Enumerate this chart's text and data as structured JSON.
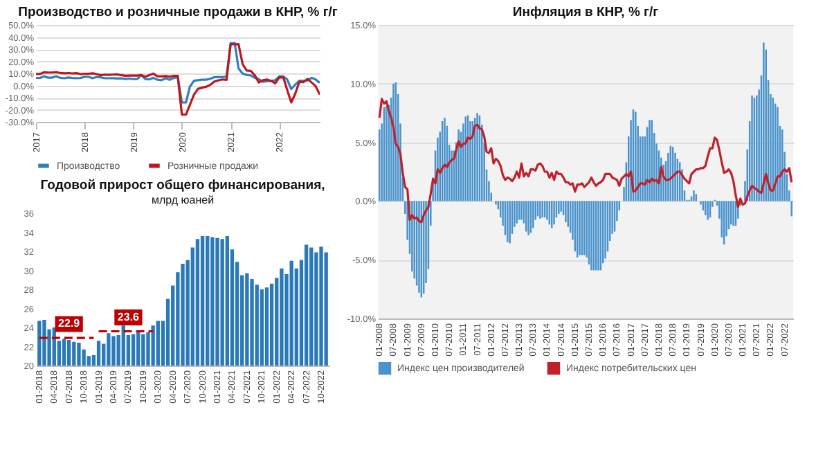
{
  "chart_data": [
    {
      "type": "line",
      "title": "Производство и розничные продажи в КНР, % г/г",
      "legend": "bottom",
      "grid": "y",
      "x": [
        "2017-01",
        "2017-02",
        "2017-03",
        "2017-04",
        "2017-05",
        "2017-06",
        "2017-07",
        "2017-08",
        "2017-09",
        "2017-10",
        "2017-11",
        "2017-12",
        "2018-01",
        "2018-02",
        "2018-03",
        "2018-04",
        "2018-05",
        "2018-06",
        "2018-07",
        "2018-08",
        "2018-09",
        "2018-10",
        "2018-11",
        "2018-12",
        "2019-01",
        "2019-02",
        "2019-03",
        "2019-04",
        "2019-05",
        "2019-06",
        "2019-07",
        "2019-08",
        "2019-09",
        "2019-10",
        "2019-11",
        "2019-12",
        "2020-01",
        "2020-02",
        "2020-03",
        "2020-04",
        "2020-05",
        "2020-06",
        "2020-07",
        "2020-08",
        "2020-09",
        "2020-10",
        "2020-11",
        "2020-12",
        "2021-01",
        "2021-02",
        "2021-03",
        "2021-04",
        "2021-05",
        "2021-06",
        "2021-07",
        "2021-08",
        "2021-09",
        "2021-10",
        "2021-11",
        "2021-12",
        "2022-01",
        "2022-02",
        "2022-03",
        "2022-04",
        "2022-05",
        "2022-06",
        "2022-07",
        "2022-08",
        "2022-09",
        "2022-10",
        "2022-11"
      ],
      "xlim": [
        "2017-01",
        "2022-11"
      ],
      "xticks": [
        "2017",
        "2018",
        "2019",
        "2020",
        "2021",
        "2022"
      ],
      "ylim": [
        -30,
        50
      ],
      "yticks": [
        {
          "value": -30,
          "label": "-30.0%"
        },
        {
          "value": -20,
          "label": "-20.0%"
        },
        {
          "value": -10,
          "label": "-10.0%"
        },
        {
          "value": 0,
          "label": "0.0%"
        },
        {
          "value": 10,
          "label": "10.0%"
        },
        {
          "value": 20,
          "label": "20.0%"
        },
        {
          "value": 30,
          "label": "30.0%"
        },
        {
          "value": 40,
          "label": "40.0%"
        },
        {
          "value": 50,
          "label": "50.0%"
        }
      ],
      "series": [
        {
          "name": "Производство",
          "color": "#2e7fc0",
          "values": [
            6.3,
            6.3,
            7.6,
            6.5,
            6.5,
            7.6,
            6.4,
            6.0,
            6.6,
            6.2,
            6.1,
            6.2,
            7.2,
            7.2,
            6.0,
            7.0,
            6.8,
            6.0,
            6.0,
            6.1,
            5.8,
            5.9,
            5.4,
            5.7,
            5.3,
            5.3,
            8.5,
            5.4,
            5.0,
            6.3,
            4.8,
            4.4,
            5.8,
            4.7,
            6.2,
            6.9,
            -14,
            -14,
            -1.1,
            3.9,
            4.4,
            4.8,
            4.8,
            5.6,
            6.9,
            6.9,
            7.0,
            7.3,
            35,
            35,
            14.1,
            9.8,
            8.8,
            8.3,
            6.4,
            5.3,
            3.1,
            3.5,
            3.8,
            4.3,
            7.5,
            7.5,
            5.0,
            -2.9,
            0.7,
            3.9,
            3.8,
            4.2,
            6.3,
            5.0,
            2.2
          ]
        },
        {
          "name": "Розничные продажи",
          "color": "#c0141c",
          "values": [
            9.5,
            9.5,
            10.9,
            10.7,
            10.7,
            11.0,
            10.4,
            10.1,
            10.3,
            10.0,
            10.2,
            9.4,
            9.7,
            9.7,
            10.1,
            9.4,
            8.5,
            9.0,
            8.8,
            9.0,
            9.2,
            8.6,
            8.1,
            8.2,
            8.2,
            8.2,
            8.7,
            7.2,
            8.6,
            9.8,
            7.6,
            7.5,
            7.8,
            7.2,
            8.0,
            8.0,
            -24,
            -24,
            -16,
            -7.5,
            -2.8,
            -1.8,
            -1.1,
            0.5,
            3.3,
            4.3,
            5.0,
            4.6,
            34,
            34,
            34.2,
            17.7,
            12.4,
            12.1,
            8.5,
            2.5,
            4.4,
            4.9,
            3.9,
            1.7,
            6.7,
            6.7,
            -3.5,
            -14,
            -6.7,
            3.1,
            2.7,
            5.4,
            2.5,
            -0.5,
            -7.5
          ]
        }
      ]
    },
    {
      "type": "bar",
      "title": "Годовой прирост общего финансирования,",
      "subtitle": "млрд юаней",
      "categories": [
        "01-2018",
        null,
        null,
        "04-2018",
        null,
        null,
        "07-2018",
        null,
        null,
        "10-2018",
        null,
        null,
        "01-2019",
        null,
        null,
        "04-2019",
        null,
        null,
        "07-2019",
        null,
        null,
        "10-2019",
        null,
        null,
        "01-2020",
        null,
        null,
        "04-2020",
        null,
        null,
        "07-2020",
        null,
        null,
        "10-2020",
        null,
        null,
        "01-2021",
        null,
        null,
        "04-2021",
        null,
        null,
        "07-2021",
        null,
        null,
        "10-2021",
        null,
        null,
        "01-2022",
        null,
        null,
        "04-2022",
        null,
        null,
        "07-2022",
        null,
        null,
        "10-2022",
        null
      ],
      "ylim": [
        20,
        36
      ],
      "yticks": [
        20,
        22,
        24,
        26,
        28,
        30,
        32,
        34,
        36
      ],
      "series": [
        {
          "type": "bar",
          "color": "#2a79b9",
          "values": [
            24.7,
            24.8,
            23.8,
            24.0,
            22.6,
            22.8,
            22.7,
            22.5,
            22.4,
            21.7,
            21.0,
            21.1,
            22.6,
            22.3,
            23.4,
            23.1,
            23.2,
            24.2,
            23.2,
            23.3,
            23.7,
            23.3,
            23.5,
            24.2,
            24.7,
            24.7,
            27.0,
            28.4,
            29.8,
            30.7,
            31.1,
            32.4,
            33.3,
            33.6,
            33.6,
            33.5,
            33.4,
            33.3,
            33.6,
            32.2,
            30.9,
            29.5,
            29.7,
            29.1,
            28.5,
            28.0,
            28.2,
            28.6,
            29.2,
            30.2,
            29.6,
            31.0,
            30.2,
            31.1,
            32.7,
            32.4,
            31.9,
            32.5,
            31.9
          ]
        },
        {
          "type": "line",
          "line_style": "dashed",
          "color": "#c00000",
          "values": [
            22.9,
            22.9,
            22.9,
            22.9,
            22.9,
            22.9,
            22.9,
            22.9,
            22.9,
            22.9,
            22.9,
            22.9,
            null,
            null,
            null,
            null,
            null,
            null,
            null,
            null,
            null,
            null,
            null,
            null,
            null,
            null,
            null,
            null,
            null,
            null,
            null,
            null,
            null,
            null,
            null,
            null,
            null,
            null,
            null,
            null,
            null,
            null,
            null,
            null,
            null,
            null,
            null,
            null,
            null,
            null,
            null,
            null,
            null,
            null,
            null,
            null,
            null,
            null,
            null
          ]
        },
        {
          "type": "line",
          "line_style": "dashed",
          "color": "#c00000",
          "values": [
            null,
            null,
            null,
            null,
            null,
            null,
            null,
            null,
            null,
            null,
            null,
            null,
            23.6,
            23.6,
            23.6,
            23.6,
            23.6,
            23.6,
            23.6,
            23.6,
            23.6,
            23.6,
            23.6,
            23.6,
            null,
            null,
            null,
            null,
            null,
            null,
            null,
            null,
            null,
            null,
            null,
            null,
            null,
            null,
            null,
            null,
            null,
            null,
            null,
            null,
            null,
            null,
            null,
            null,
            null,
            null,
            null,
            null,
            null,
            null,
            null,
            null,
            null,
            null,
            null
          ]
        }
      ],
      "annotations": [
        {
          "text": "22.9",
          "x": "07-2018",
          "y": 22.9
        },
        {
          "text": "23.6",
          "x": "07-2019",
          "y": 23.6
        }
      ]
    },
    {
      "type": "bar",
      "title": "Инфляция в КНР, % г/г",
      "legend": "bottom",
      "grid": "y",
      "categories": [
        "01-2008",
        null,
        null,
        null,
        null,
        null,
        "07-2008",
        null,
        null,
        null,
        null,
        null,
        "01-2009",
        null,
        null,
        null,
        null,
        null,
        "07-2009",
        null,
        null,
        null,
        null,
        null,
        "01-2010",
        null,
        null,
        null,
        null,
        null,
        "07-2010",
        null,
        null,
        null,
        null,
        null,
        "01-2011",
        null,
        null,
        null,
        null,
        null,
        "07-2011",
        null,
        null,
        null,
        null,
        null,
        "01-2012",
        null,
        null,
        null,
        null,
        null,
        "07-2012",
        null,
        null,
        null,
        null,
        null,
        "01-2013",
        null,
        null,
        null,
        null,
        null,
        "07-2013",
        null,
        null,
        null,
        null,
        null,
        "01-2014",
        null,
        null,
        null,
        null,
        null,
        "07-2014",
        null,
        null,
        null,
        null,
        null,
        "01-2015",
        null,
        null,
        null,
        null,
        null,
        "07-2015",
        null,
        null,
        null,
        null,
        null,
        "01-2016",
        null,
        null,
        null,
        null,
        null,
        "07-2016",
        null,
        null,
        null,
        null,
        null,
        "01-2017",
        null,
        null,
        null,
        null,
        null,
        "07-2017",
        null,
        null,
        null,
        null,
        null,
        "01-2018",
        null,
        null,
        null,
        null,
        null,
        "07-2018",
        null,
        null,
        null,
        null,
        null,
        "01-2019",
        null,
        null,
        null,
        null,
        null,
        "07-2019",
        null,
        null,
        null,
        null,
        null,
        "01-2020",
        null,
        null,
        null,
        null,
        null,
        "07-2020",
        null,
        null,
        null,
        null,
        null,
        "01-2021",
        null,
        null,
        null,
        null,
        null,
        "07-2021",
        null,
        null,
        null,
        null,
        null,
        "01-2022",
        null,
        null,
        null,
        null,
        null,
        "07-2022",
        null,
        null,
        null
      ],
      "ylim": [
        -10,
        15
      ],
      "yticks": [
        {
          "value": -10,
          "label": "-10.0%"
        },
        {
          "value": -5,
          "label": "-5.0%"
        },
        {
          "value": 0,
          "label": "0.0%"
        },
        {
          "value": 5,
          "label": "5.0%"
        },
        {
          "value": 10,
          "label": "10.0%"
        },
        {
          "value": 15,
          "label": "15.0%"
        }
      ],
      "series": [
        {
          "type": "bar",
          "name": "Индекс цен производителей",
          "color": "#4a93cc",
          "values": [
            6.1,
            6.6,
            8.0,
            8.1,
            8.2,
            8.8,
            10.0,
            10.1,
            9.1,
            6.6,
            2.0,
            -1.1,
            -3.3,
            -4.5,
            -6.0,
            -6.6,
            -7.2,
            -7.8,
            -8.2,
            -7.9,
            -7.0,
            -5.8,
            -2.1,
            1.7,
            4.3,
            5.4,
            5.9,
            6.8,
            7.1,
            6.4,
            4.8,
            4.3,
            4.3,
            5.0,
            6.1,
            5.9,
            6.6,
            7.2,
            7.3,
            6.8,
            6.8,
            7.1,
            7.5,
            7.3,
            6.5,
            5.0,
            2.7,
            1.7,
            0.7,
            0.0,
            -0.3,
            -0.7,
            -1.4,
            -2.1,
            -2.9,
            -3.5,
            -3.6,
            -2.8,
            -2.2,
            -1.9,
            -1.6,
            -1.6,
            -1.9,
            -2.6,
            -2.9,
            -2.7,
            -2.3,
            -1.6,
            -1.3,
            -1.5,
            -1.4,
            -1.4,
            -1.6,
            -2.0,
            -2.3,
            -2.0,
            -1.4,
            -1.1,
            -0.9,
            -1.2,
            -1.8,
            -2.2,
            -2.7,
            -3.3,
            -4.3,
            -4.8,
            -4.6,
            -4.6,
            -4.6,
            -4.8,
            -5.4,
            -5.9,
            -5.9,
            -5.9,
            -5.9,
            -5.9,
            -5.3,
            -4.9,
            -4.3,
            -3.4,
            -2.8,
            -2.6,
            -1.7,
            -0.8,
            null,
            1.2,
            3.3,
            5.5,
            6.9,
            7.8,
            7.6,
            6.4,
            5.5,
            5.5,
            5.5,
            6.3,
            6.9,
            6.9,
            5.8,
            4.9,
            4.3,
            3.7,
            3.1,
            3.4,
            4.1,
            4.7,
            4.6,
            4.1,
            3.6,
            3.3,
            2.7,
            0.9,
            0.1,
            0.1,
            0.4,
            0.9,
            0.6,
            0.0,
            -0.3,
            -0.8,
            -1.2,
            -1.6,
            -1.4,
            -0.5,
            0.1,
            -0.4,
            -1.5,
            -3.1,
            -3.7,
            -3.0,
            -2.4,
            -2.0,
            -2.1,
            -2.1,
            -1.5,
            -0.4,
            null,
            1.7,
            4.4,
            6.8,
            9.0,
            8.8,
            9.0,
            9.5,
            10.7,
            13.5,
            12.9,
            10.3,
            9.1,
            8.8,
            8.3,
            8.0,
            6.4,
            6.1,
            4.2,
            2.3,
            0.9,
            -1.3
          ]
        },
        {
          "type": "line",
          "name": "Индекс потребительских цен",
          "color": "#c0202a",
          "values": [
            7.1,
            8.7,
            8.3,
            8.5,
            7.7,
            7.1,
            6.3,
            4.9,
            4.6,
            4.0,
            2.4,
            1.2,
            1.0,
            -1.6,
            -1.2,
            -1.5,
            -1.4,
            -1.7,
            -1.8,
            -1.2,
            -0.8,
            -0.5,
            0.6,
            1.9,
            1.5,
            2.7,
            2.4,
            2.8,
            3.1,
            2.9,
            3.3,
            3.5,
            3.6,
            4.4,
            5.1,
            4.6,
            4.9,
            4.9,
            5.4,
            5.3,
            5.5,
            6.4,
            6.5,
            6.2,
            6.1,
            5.5,
            4.2,
            4.1,
            4.5,
            3.2,
            3.6,
            3.4,
            3.0,
            2.2,
            1.8,
            2.0,
            1.9,
            1.7,
            2.0,
            2.5,
            2.0,
            3.2,
            2.1,
            2.4,
            2.1,
            2.7,
            2.7,
            2.6,
            3.1,
            3.2,
            3.0,
            2.5,
            2.5,
            2.0,
            2.4,
            1.8,
            2.5,
            2.3,
            2.3,
            2.0,
            1.6,
            1.6,
            1.4,
            1.5,
            0.8,
            1.4,
            1.4,
            1.5,
            1.2,
            1.4,
            1.6,
            2.0,
            1.6,
            1.3,
            1.5,
            1.6,
            1.8,
            2.3,
            2.3,
            2.3,
            2.0,
            1.9,
            1.8,
            1.3,
            1.9,
            2.1,
            2.3,
            2.1,
            2.5,
            0.8,
            0.9,
            1.2,
            1.5,
            1.5,
            1.4,
            1.8,
            1.6,
            1.9,
            1.7,
            1.8,
            1.5,
            2.9,
            2.1,
            1.8,
            1.8,
            1.9,
            2.1,
            2.3,
            2.5,
            2.5,
            2.2,
            1.9,
            1.7,
            1.5,
            2.3,
            2.5,
            2.7,
            2.7,
            2.8,
            2.8,
            3.0,
            3.8,
            4.5,
            4.5,
            5.4,
            5.2,
            4.3,
            3.3,
            2.4,
            2.5,
            2.7,
            2.4,
            1.7,
            0.5,
            -0.5,
            0.2,
            -0.3,
            -0.2,
            0.4,
            0.9,
            1.3,
            1.1,
            1.0,
            0.8,
            0.7,
            1.5,
            2.3,
            1.5,
            0.9,
            0.9,
            1.5,
            2.1,
            2.1,
            2.5,
            2.7,
            2.5,
            2.8,
            1.6
          ]
        }
      ]
    }
  ]
}
